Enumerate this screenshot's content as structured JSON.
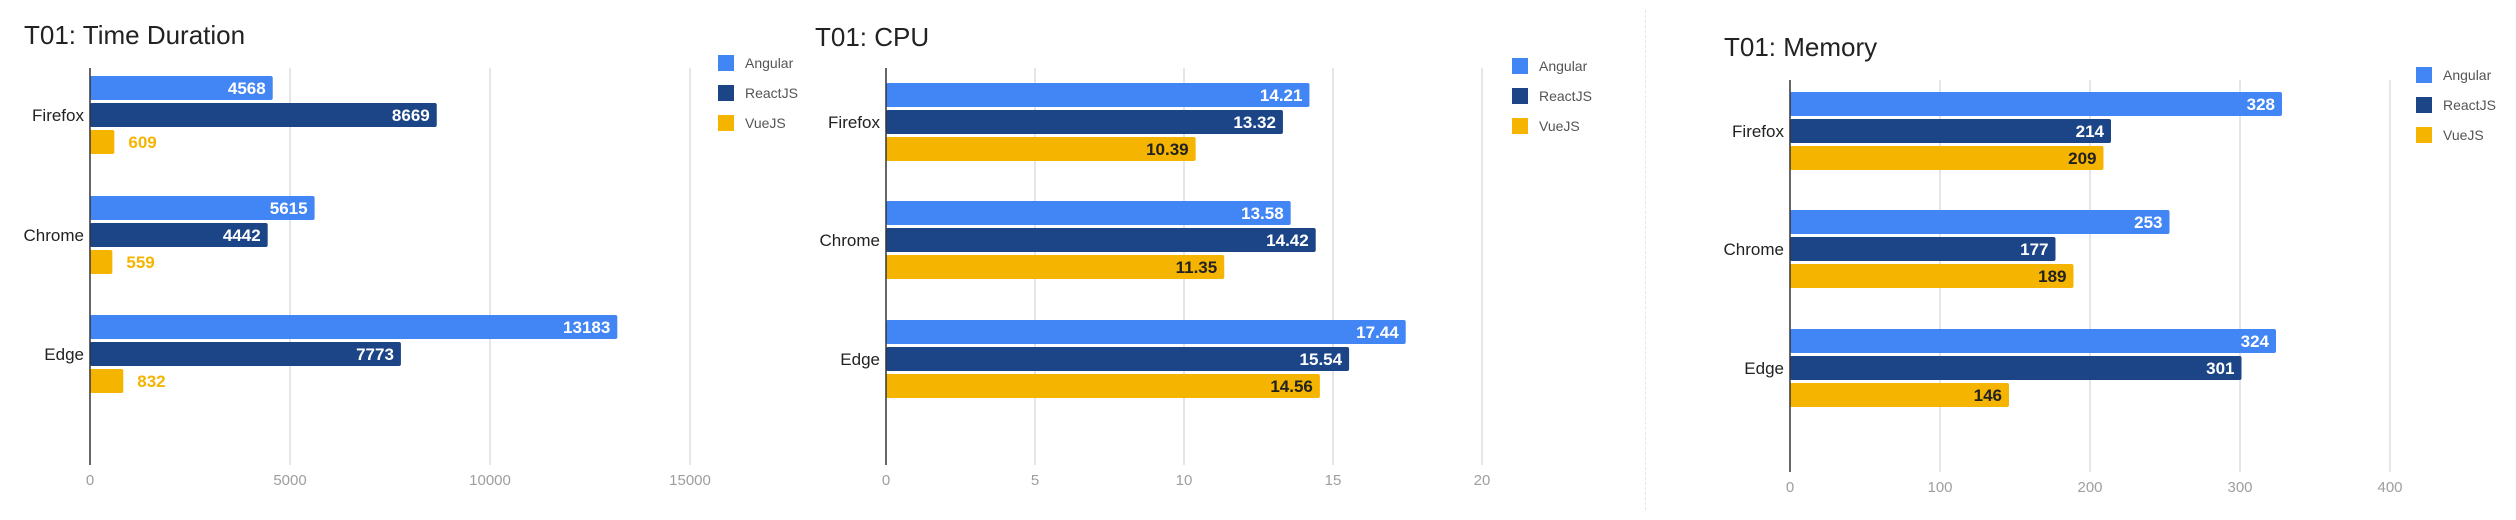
{
  "chart_data": [
    {
      "type": "bar",
      "orientation": "horizontal",
      "title": "T01: Time Duration",
      "categories": [
        "Firefox",
        "Chrome",
        "Edge"
      ],
      "series": [
        {
          "name": "Angular",
          "color": "#4285f4",
          "values": [
            4568,
            5615,
            13183
          ]
        },
        {
          "name": "ReactJS",
          "color": "#1c4587",
          "values": [
            8669,
            4442,
            7773
          ]
        },
        {
          "name": "VueJS",
          "color": "#f4b400",
          "values": [
            609,
            559,
            832
          ]
        }
      ],
      "xticks": [
        "0",
        "5000",
        "10000",
        "15000"
      ],
      "xlim": [
        0,
        15000
      ],
      "grid": true,
      "legend": "right"
    },
    {
      "type": "bar",
      "orientation": "horizontal",
      "title": "T01: CPU",
      "categories": [
        "Firefox",
        "Chrome",
        "Edge"
      ],
      "series": [
        {
          "name": "Angular",
          "color": "#4285f4",
          "values": [
            14.21,
            13.58,
            17.44
          ]
        },
        {
          "name": "ReactJS",
          "color": "#1c4587",
          "values": [
            13.32,
            14.42,
            15.54
          ]
        },
        {
          "name": "VueJS",
          "color": "#f4b400",
          "values": [
            10.39,
            11.35,
            14.56
          ]
        }
      ],
      "xticks": [
        "0",
        "5",
        "10",
        "15",
        "20"
      ],
      "xlim": [
        0,
        20
      ],
      "grid": true,
      "legend": "right"
    },
    {
      "type": "bar",
      "orientation": "horizontal",
      "title": "T01: Memory",
      "categories": [
        "Firefox",
        "Chrome",
        "Edge"
      ],
      "series": [
        {
          "name": "Angular",
          "color": "#4285f4",
          "values": [
            328,
            253,
            324
          ]
        },
        {
          "name": "ReactJS",
          "color": "#1c4587",
          "values": [
            214,
            177,
            301
          ]
        },
        {
          "name": "VueJS",
          "color": "#f4b400",
          "values": [
            209,
            189,
            146
          ]
        }
      ],
      "xticks": [
        "0",
        "100",
        "200",
        "300",
        "400"
      ],
      "xlim": [
        0,
        400
      ],
      "grid": true,
      "legend": "right"
    }
  ]
}
